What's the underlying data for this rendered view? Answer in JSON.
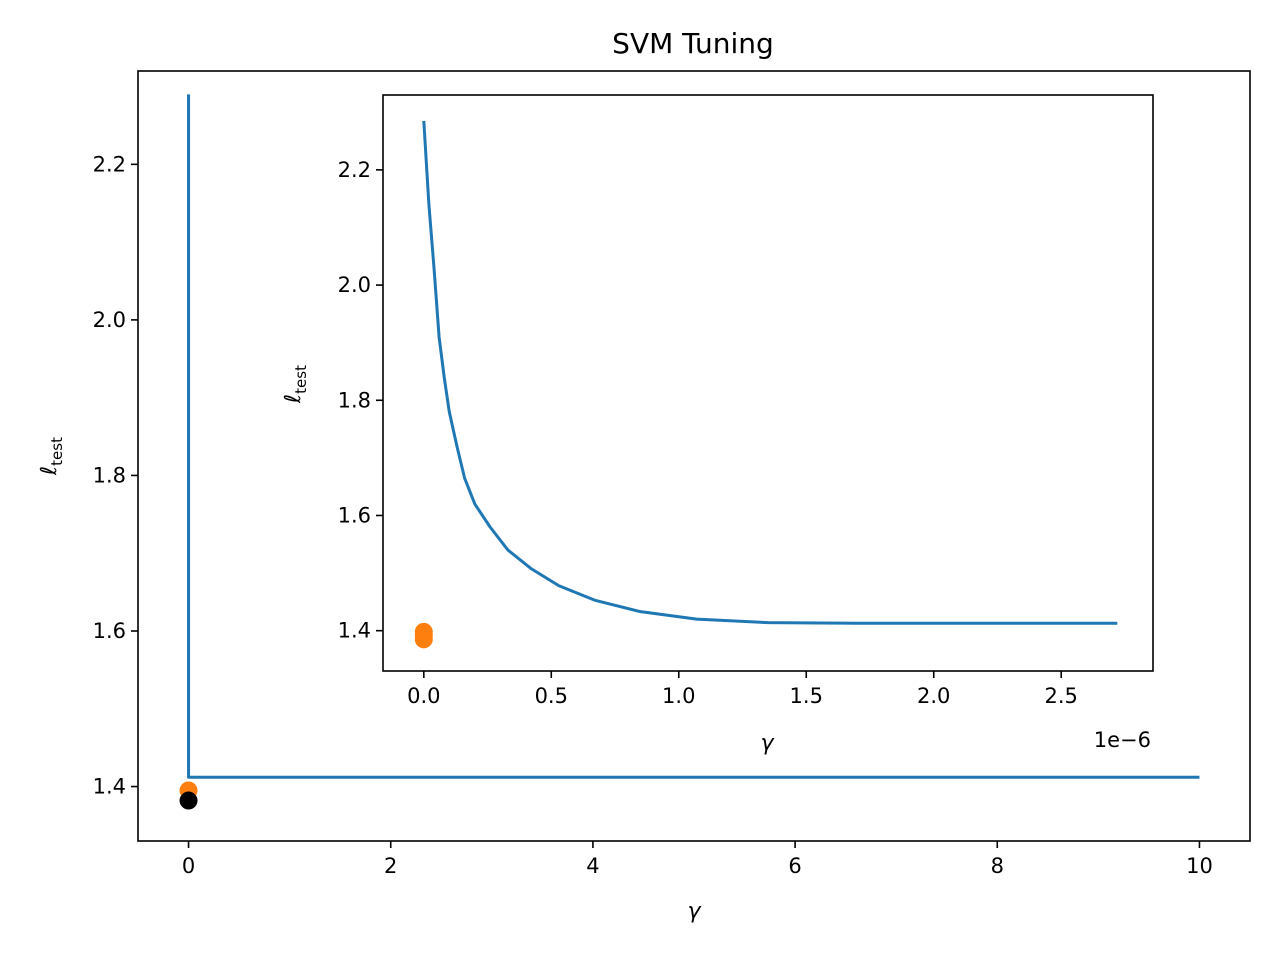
{
  "chart_data": [
    {
      "type": "line",
      "title": "SVM Tuning",
      "xlabel": "γ",
      "ylabel_main": "ℓ",
      "ylabel_sub": "test",
      "xlim": [
        -0.5,
        10.5
      ],
      "ylim": [
        1.33,
        2.32
      ],
      "xticks": [
        0,
        2,
        4,
        6,
        8,
        10
      ],
      "xtick_labels": [
        "0",
        "2",
        "4",
        "6",
        "8",
        "10"
      ],
      "yticks": [
        1.4,
        1.6,
        1.8,
        2.0,
        2.2
      ],
      "ytick_labels": [
        "1.4",
        "1.6",
        "1.8",
        "2.0",
        "2.2"
      ],
      "grid": false,
      "line_color": "#1f77b4",
      "line": {
        "x": [
          0,
          0,
          0,
          0.01,
          1,
          10
        ],
        "y": [
          2.29,
          1.6,
          1.412,
          1.412,
          1.412,
          1.412
        ]
      },
      "points": [
        {
          "x": 0,
          "y": 1.395,
          "color": "#ff7f0e"
        },
        {
          "x": 0,
          "y": 1.382,
          "color": "#000000"
        }
      ]
    },
    {
      "type": "line",
      "xlabel": "γ",
      "ylabel_main": "ℓ",
      "ylabel_sub": "test",
      "offset_text": "1e−6",
      "xlim": [
        -0.16,
        2.86
      ],
      "ylim": [
        1.33,
        2.33
      ],
      "xticks": [
        0,
        0.5,
        1.0,
        1.5,
        2.0,
        2.5
      ],
      "xtick_labels": [
        "0.0",
        "0.5",
        "1.0",
        "1.5",
        "2.0",
        "2.5"
      ],
      "yticks": [
        1.4,
        1.6,
        1.8,
        2.0,
        2.2
      ],
      "ytick_labels": [
        "1.4",
        "1.6",
        "1.8",
        "2.0",
        "2.2"
      ],
      "grid": false,
      "line_color": "#1f77b4",
      "line": {
        "x": [
          0.0,
          0.02,
          0.04,
          0.06,
          0.08,
          0.1,
          0.13,
          0.16,
          0.2,
          0.26,
          0.33,
          0.42,
          0.53,
          0.67,
          0.85,
          1.07,
          1.35,
          1.7,
          2.15,
          2.72
        ],
        "y": [
          2.285,
          2.14,
          2.03,
          1.91,
          1.84,
          1.78,
          1.72,
          1.665,
          1.62,
          1.58,
          1.54,
          1.508,
          1.478,
          1.453,
          1.433,
          1.42,
          1.414,
          1.413,
          1.413,
          1.413
        ]
      },
      "points": [
        {
          "x": 0,
          "y": 1.398,
          "color": "#ff7f0e"
        },
        {
          "x": 0,
          "y": 1.392,
          "color": "#ff7f0e"
        },
        {
          "x": 0,
          "y": 1.385,
          "color": "#ff7f0e"
        }
      ]
    }
  ]
}
